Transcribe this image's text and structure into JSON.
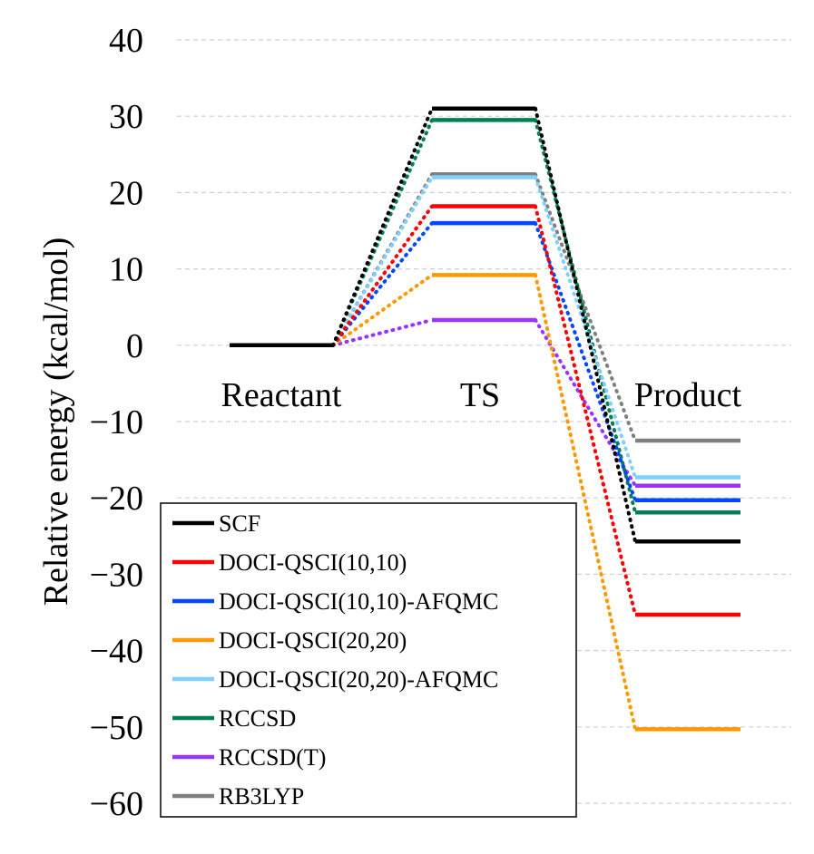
{
  "chart_data": {
    "type": "line",
    "title": "",
    "xlabel": "",
    "ylabel": "Relative energy (kcal/mol)",
    "ylim": [
      -60,
      40
    ],
    "yticks": [
      40,
      30,
      20,
      10,
      0,
      -10,
      -20,
      -30,
      -40,
      -50,
      -60
    ],
    "grid": true,
    "legend_position": "bottom-left",
    "categories": [
      "Reactant",
      "TS",
      "Product"
    ],
    "series": [
      {
        "name": "SCF",
        "color": "#000000",
        "values": [
          0,
          31.0,
          -25.7
        ]
      },
      {
        "name": "DOCI-QSCI(10,10)",
        "color": "#ff0000",
        "values": [
          0,
          18.2,
          -35.3
        ]
      },
      {
        "name": "DOCI-QSCI(10,10)-AFQMC",
        "color": "#0047ff",
        "values": [
          0,
          16.0,
          -20.3
        ]
      },
      {
        "name": "DOCI-QSCI(20,20)",
        "color": "#ff9900",
        "values": [
          0,
          9.2,
          -50.3
        ]
      },
      {
        "name": "DOCI-QSCI(20,20)-AFQMC",
        "color": "#7fd0ff",
        "values": [
          0,
          22.0,
          -17.3
        ]
      },
      {
        "name": "RCCSD",
        "color": "#008050",
        "values": [
          0,
          29.5,
          -21.9
        ]
      },
      {
        "name": "RCCSD(T)",
        "color": "#9933ff",
        "values": [
          0,
          3.3,
          -18.4
        ]
      },
      {
        "name": "RB3LYP",
        "color": "#808080",
        "values": [
          0,
          22.4,
          -12.5
        ]
      }
    ]
  }
}
